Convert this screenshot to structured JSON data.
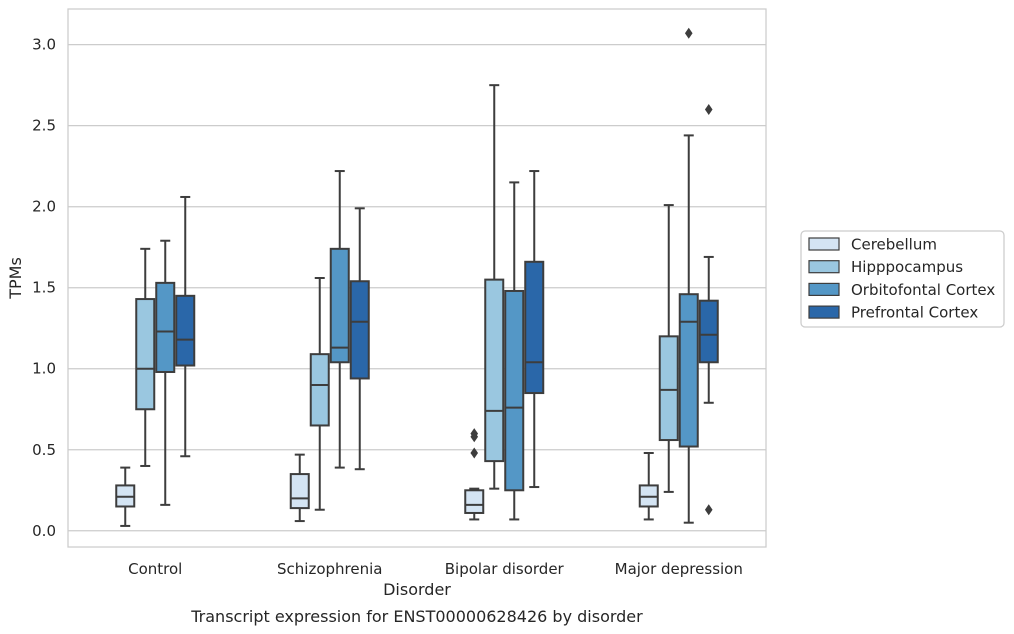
{
  "chart_data": {
    "type": "box",
    "caption": "Transcript expression for ENST00000628426 by disorder",
    "xlabel": "Disorder",
    "ylabel": "TPMs",
    "ylim": [
      -0.1,
      3.22
    ],
    "yticks": [
      0.0,
      0.5,
      1.0,
      1.5,
      2.0,
      2.5,
      3.0
    ],
    "ytick_labels": [
      "0.0",
      "0.5",
      "1.0",
      "1.5",
      "2.0",
      "2.5",
      "3.0"
    ],
    "grid": "horizontal",
    "legend_position": "right",
    "categories": [
      "Control",
      "Schizophrenia",
      "Bipolar disorder",
      "Major depression"
    ],
    "series": [
      {
        "name": "Cerebellum",
        "color": "#d4e4f3",
        "boxes": [
          {
            "whislo": 0.03,
            "q1": 0.15,
            "med": 0.21,
            "q3": 0.28,
            "whishi": 0.39,
            "fliers": []
          },
          {
            "whislo": 0.06,
            "q1": 0.14,
            "med": 0.2,
            "q3": 0.35,
            "whishi": 0.47,
            "fliers": []
          },
          {
            "whislo": 0.07,
            "q1": 0.11,
            "med": 0.16,
            "q3": 0.25,
            "whishi": 0.26,
            "fliers": [
              0.48,
              0.58,
              0.6
            ]
          },
          {
            "whislo": 0.07,
            "q1": 0.15,
            "med": 0.21,
            "q3": 0.28,
            "whishi": 0.48,
            "fliers": []
          }
        ]
      },
      {
        "name": "Hipppocampus",
        "color": "#9ac7e0",
        "boxes": [
          {
            "whislo": 0.4,
            "q1": 0.75,
            "med": 1.0,
            "q3": 1.43,
            "whishi": 1.74,
            "fliers": []
          },
          {
            "whislo": 0.13,
            "q1": 0.65,
            "med": 0.9,
            "q3": 1.09,
            "whishi": 1.56,
            "fliers": []
          },
          {
            "whislo": 0.26,
            "q1": 0.43,
            "med": 0.74,
            "q3": 1.55,
            "whishi": 2.75,
            "fliers": []
          },
          {
            "whislo": 0.24,
            "q1": 0.56,
            "med": 0.87,
            "q3": 1.2,
            "whishi": 2.01,
            "fliers": []
          }
        ]
      },
      {
        "name": "Orbitofontal Cortex",
        "color": "#5497c6",
        "boxes": [
          {
            "whislo": 0.16,
            "q1": 0.98,
            "med": 1.23,
            "q3": 1.53,
            "whishi": 1.79,
            "fliers": []
          },
          {
            "whislo": 0.39,
            "q1": 1.04,
            "med": 1.13,
            "q3": 1.74,
            "whishi": 2.22,
            "fliers": []
          },
          {
            "whislo": 0.07,
            "q1": 0.25,
            "med": 0.76,
            "q3": 1.48,
            "whishi": 2.15,
            "fliers": []
          },
          {
            "whislo": 0.05,
            "q1": 0.52,
            "med": 1.29,
            "q3": 1.46,
            "whishi": 2.44,
            "fliers": [
              3.07
            ]
          }
        ]
      },
      {
        "name": "Prefrontal Cortex",
        "color": "#2a67a9",
        "boxes": [
          {
            "whislo": 0.46,
            "q1": 1.02,
            "med": 1.18,
            "q3": 1.45,
            "whishi": 2.06,
            "fliers": []
          },
          {
            "whislo": 0.38,
            "q1": 0.94,
            "med": 1.29,
            "q3": 1.54,
            "whishi": 1.99,
            "fliers": []
          },
          {
            "whislo": 0.27,
            "q1": 0.85,
            "med": 1.04,
            "q3": 1.66,
            "whishi": 2.22,
            "fliers": []
          },
          {
            "whislo": 0.79,
            "q1": 1.04,
            "med": 1.21,
            "q3": 1.42,
            "whishi": 1.69,
            "fliers": [
              0.13,
              2.6
            ]
          }
        ]
      }
    ]
  }
}
